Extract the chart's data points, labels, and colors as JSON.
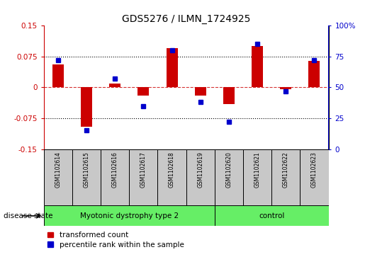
{
  "title": "GDS5276 / ILMN_1724925",
  "samples": [
    "GSM1102614",
    "GSM1102615",
    "GSM1102616",
    "GSM1102617",
    "GSM1102618",
    "GSM1102619",
    "GSM1102620",
    "GSM1102621",
    "GSM1102622",
    "GSM1102623"
  ],
  "red_values": [
    0.055,
    -0.095,
    0.01,
    -0.02,
    0.095,
    -0.02,
    -0.04,
    0.1,
    -0.005,
    0.065
  ],
  "blue_values": [
    72,
    15,
    57,
    35,
    80,
    38,
    22,
    85,
    47,
    72
  ],
  "groups": [
    {
      "label": "Myotonic dystrophy type 2",
      "start": 0,
      "end": 5
    },
    {
      "label": "control",
      "start": 6,
      "end": 9
    }
  ],
  "ylim_left": [
    -0.15,
    0.15
  ],
  "ylim_right": [
    0,
    100
  ],
  "yticks_left": [
    -0.15,
    -0.075,
    0,
    0.075,
    0.15
  ],
  "yticks_right": [
    0,
    25,
    50,
    75,
    100
  ],
  "ytick_labels_left": [
    "-0.15",
    "-0.075",
    "0",
    "0.075",
    "0.15"
  ],
  "ytick_labels_right": [
    "0",
    "25",
    "50",
    "75",
    "100%"
  ],
  "red_color": "#CC0000",
  "blue_color": "#0000CC",
  "bar_width": 0.4,
  "disease_state_label": "disease state",
  "legend_red": "transformed count",
  "legend_blue": "percentile rank within the sample",
  "sample_box_color": "#C8C8C8",
  "green_color": "#66EE66"
}
